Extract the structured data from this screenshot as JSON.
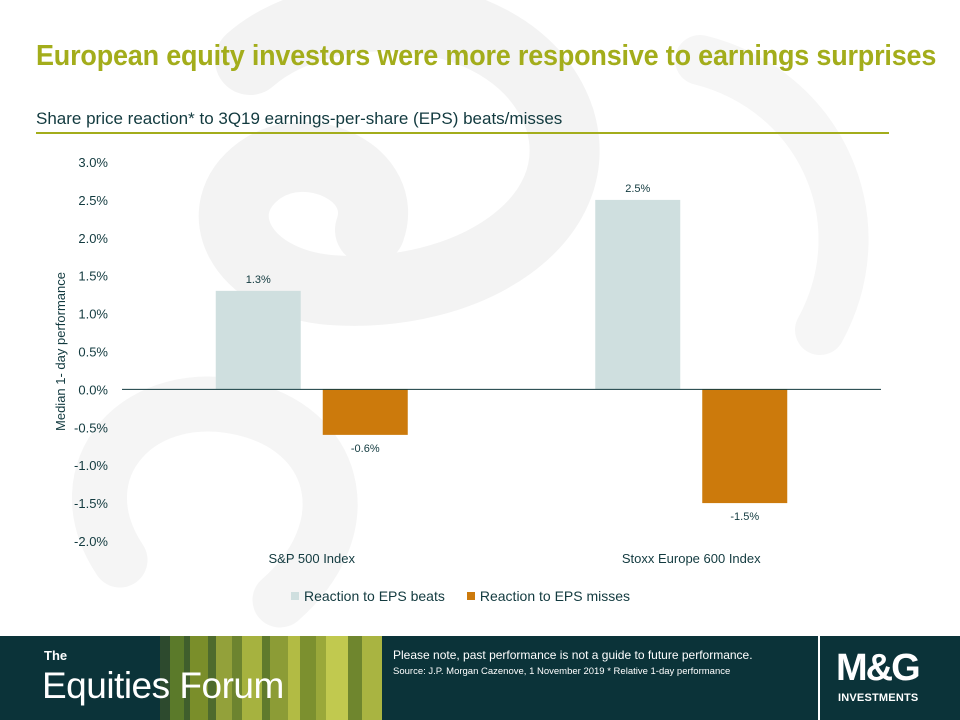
{
  "header": {
    "title": "European equity investors were more responsive to earnings surprises",
    "subtitle": "Share price reaction* to 3Q19 earnings-per-share (EPS) beats/misses"
  },
  "chart_data": {
    "type": "bar",
    "categories": [
      "S&P 500 Index",
      "Stoxx Europe 600 Index"
    ],
    "series": [
      {
        "name": "Reaction to EPS beats",
        "values": [
          1.3,
          2.5
        ],
        "labels": [
          "1.3%",
          "2.5%"
        ],
        "color": "#cfdfdf"
      },
      {
        "name": "Reaction to EPS misses",
        "values": [
          -0.6,
          -1.5
        ],
        "labels": [
          "-0.6%",
          "-1.5%"
        ],
        "color": "#cc7a0c"
      }
    ],
    "ylabel": "Median 1- day performance",
    "ylim": [
      -2.0,
      3.0
    ],
    "yticks": [
      3.0,
      2.5,
      2.0,
      1.5,
      1.0,
      0.5,
      0.0,
      -0.5,
      -1.0,
      -1.5,
      -2.0
    ],
    "ytick_labels": [
      "3.0%",
      "2.5%",
      "2.0%",
      "1.5%",
      "1.0%",
      "0.5%",
      "0.0%",
      "-0.5%",
      "-1.0%",
      "-1.5%",
      "-2.0%"
    ],
    "grid": false,
    "legend": "bottom",
    "zero_line_color": "#123a3f"
  },
  "footer": {
    "brand_the": "The",
    "brand_name": "Equities Forum",
    "disclaimer": "Please note, past performance  is not a guide to future performance.",
    "source": "Source: J.P. Morgan Cazenove, 1 November 2019 * Relative 1-day performance",
    "logo_text": "M&G",
    "logo_subtext": "INVESTMENTS"
  },
  "colors": {
    "title": "#a3ad1b",
    "text": "#123a3f",
    "footer_bg": "#0b3339"
  }
}
